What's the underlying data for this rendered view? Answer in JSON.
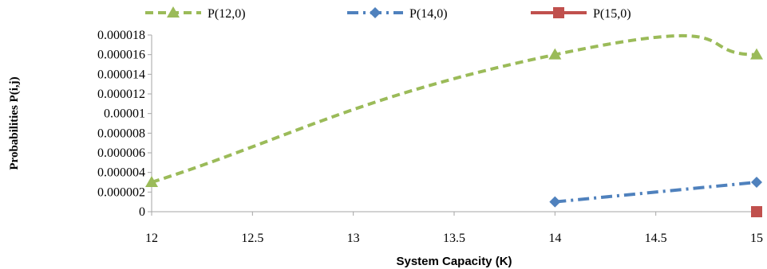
{
  "chart_data": {
    "type": "line",
    "title": "",
    "xlabel": "System Capacity (K)",
    "ylabel": "Probabilities  P(i,j)",
    "xlim": [
      12,
      15
    ],
    "ylim": [
      0,
      1.8e-05
    ],
    "x_ticks": [
      "12",
      "12.5",
      "13",
      "13.5",
      "14",
      "14.5",
      "15"
    ],
    "y_ticks": [
      "0",
      "0.000002",
      "0.000004",
      "0.000006",
      "0.000008",
      "0.00001",
      "0.000012",
      "0.000014",
      "0.000016",
      "0.000018"
    ],
    "grid": false,
    "legend": "top",
    "series": [
      {
        "name": "P(12,0)",
        "x": [
          12,
          14,
          15
        ],
        "values": [
          3e-06,
          1.6e-05,
          1.6e-05
        ],
        "color": "#9bbb59",
        "marker": "triangle",
        "line_style": "dashed",
        "smooth": true
      },
      {
        "name": "P(14,0)",
        "x": [
          14,
          15
        ],
        "values": [
          1e-06,
          3e-06
        ],
        "color": "#4f81bd",
        "marker": "diamond",
        "line_style": "dash-dot",
        "smooth": false
      },
      {
        "name": "P(15,0)",
        "x": [
          15
        ],
        "values": [
          0
        ],
        "color": "#c0504d",
        "marker": "square",
        "line_style": "solid",
        "smooth": false
      }
    ]
  }
}
